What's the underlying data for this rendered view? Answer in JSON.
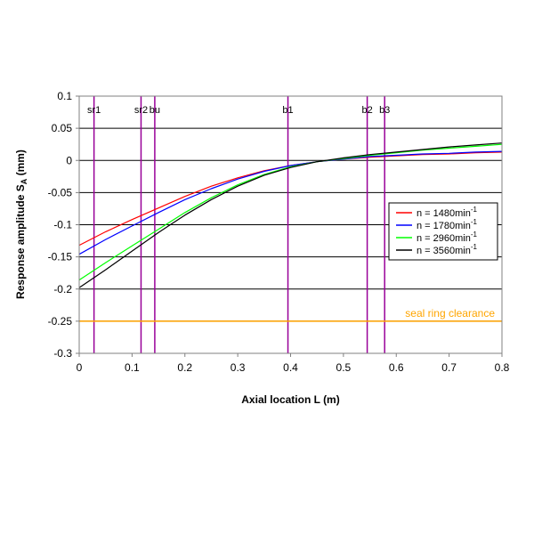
{
  "chart_data": {
    "type": "line",
    "title": "",
    "xlabel": "Axial location L (m)",
    "ylabel": "Response amplitude S",
    "ylabel_subscript": "A",
    "ylabel_unit": " (mm)",
    "xlim": [
      0,
      0.8
    ],
    "ylim": [
      -0.3,
      0.1
    ],
    "x_ticks": [
      0,
      0.1,
      0.2,
      0.3,
      0.4,
      0.5,
      0.6,
      0.7,
      0.8
    ],
    "x_tick_labels": [
      "0",
      "0.1",
      "0.2",
      "0.3",
      "0.4",
      "0.5",
      "0.6",
      "0.7",
      "0.8"
    ],
    "y_ticks": [
      0.1,
      0.05,
      0,
      -0.05,
      -0.1,
      -0.15,
      -0.2,
      -0.25,
      -0.3
    ],
    "y_tick_labels": [
      "0.1",
      "0.05",
      "0",
      "-0.05",
      "-0.1",
      "-0.15",
      "-0.2",
      "-0.25",
      "-0.3"
    ],
    "grid": "horizontal",
    "legend_position": "right",
    "x": [
      0,
      0.05,
      0.1,
      0.15,
      0.2,
      0.25,
      0.3,
      0.35,
      0.4,
      0.45,
      0.5,
      0.55,
      0.6,
      0.65,
      0.7,
      0.75,
      0.8
    ],
    "series": [
      {
        "name": "n = 1480min",
        "superscript": "-1",
        "color": "#ff0000",
        "values": [
          -0.132,
          -0.111,
          -0.092,
          -0.074,
          -0.056,
          -0.04,
          -0.027,
          -0.016,
          -0.008,
          -0.002,
          0.002,
          0.005,
          0.007,
          0.009,
          0.01,
          0.012,
          0.013
        ]
      },
      {
        "name": "n = 1780min",
        "superscript": "-1",
        "color": "#0000ff",
        "values": [
          -0.146,
          -0.123,
          -0.102,
          -0.081,
          -0.061,
          -0.044,
          -0.029,
          -0.017,
          -0.008,
          -0.002,
          0.002,
          0.006,
          0.008,
          0.01,
          0.011,
          0.013,
          0.014
        ]
      },
      {
        "name": "n = 2960min",
        "superscript": "-1",
        "color": "#00ff00",
        "values": [
          -0.186,
          -0.159,
          -0.133,
          -0.107,
          -0.081,
          -0.058,
          -0.038,
          -0.022,
          -0.01,
          -0.002,
          0.003,
          0.008,
          0.012,
          0.016,
          0.019,
          0.022,
          0.025
        ]
      },
      {
        "name": "n = 3560min",
        "superscript": "-1",
        "color": "#000000",
        "values": [
          -0.198,
          -0.17,
          -0.141,
          -0.112,
          -0.085,
          -0.061,
          -0.04,
          -0.023,
          -0.011,
          -0.002,
          0.004,
          0.009,
          0.013,
          0.017,
          0.021,
          0.024,
          0.027
        ]
      }
    ],
    "markers": [
      {
        "label": "sr1",
        "x": 0.028
      },
      {
        "label": "sr2",
        "x": 0.117
      },
      {
        "label": "bu",
        "x": 0.143
      },
      {
        "label": "b1",
        "x": 0.395
      },
      {
        "label": "b2",
        "x": 0.545
      },
      {
        "label": "b3",
        "x": 0.578
      }
    ],
    "marker_color": "#990099",
    "reference_line": {
      "label": "seal ring clearance",
      "y": -0.25,
      "color": "#ffa500"
    }
  }
}
